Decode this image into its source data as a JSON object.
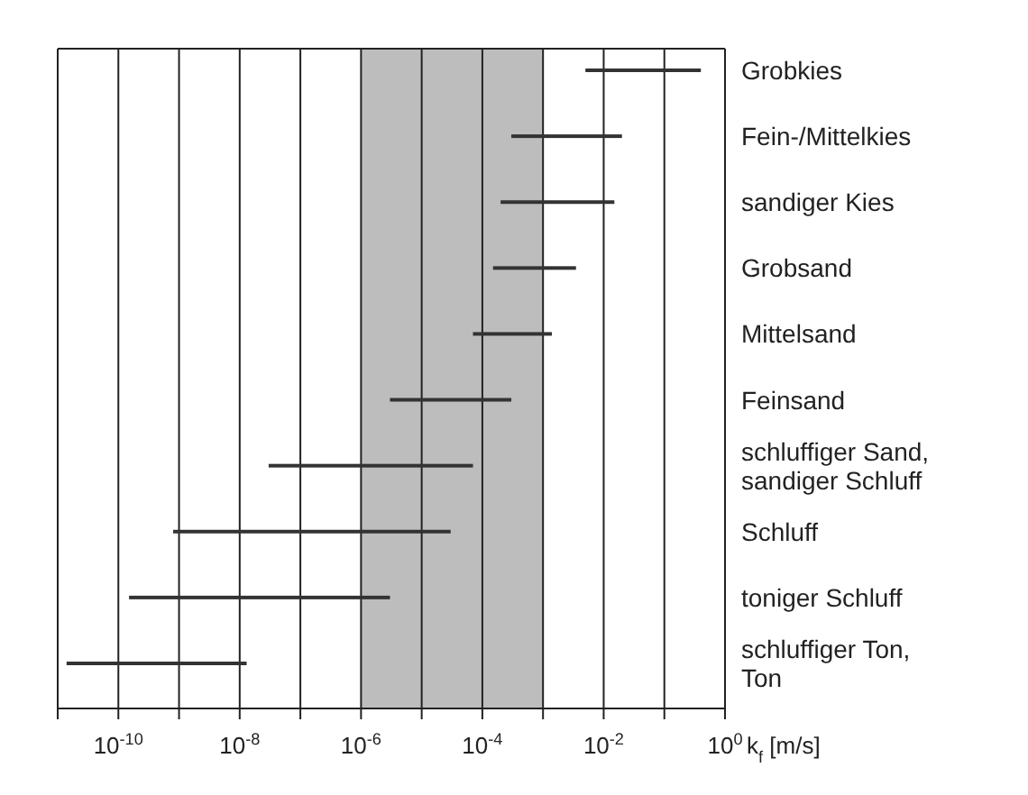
{
  "chart_data": {
    "type": "bar",
    "orientation": "horizontal",
    "xlabel": "k$_{f}$ [m/s]",
    "categories": [
      "Grobkies",
      "Fein-/Mittelkies",
      "sandiger Kies",
      "Grobsand",
      "Mittelsand",
      "Feinsand",
      "schluffiger Sand, sandiger Schluff",
      "Schluff",
      "toniger Schluff",
      "schluffiger Ton, Ton"
    ],
    "base": [
      0.005,
      0.0003,
      0.0002,
      0.00015,
      7e-05,
      3e-06,
      3e-08,
      8e-10,
      1.5e-10,
      1.4e-11
    ],
    "values": [
      0.395,
      0.0197,
      0.0148,
      0.00335,
      0.00133,
      0.000297,
      7e-05,
      3e-05,
      3e-06,
      1.3e-08
    ],
    "color": "#333333",
    "log": "x",
    "xlim": [
      1e-11,
      1
    ],
    "xticks": [
      {
        "value": 1e-11,
        "label": null
      },
      {
        "value": 1e-10,
        "label": "10$^{-10}$"
      },
      {
        "value": 1e-09,
        "label": null
      },
      {
        "value": 1e-08,
        "label": "10$^{-8}$"
      },
      {
        "value": 1e-07,
        "label": null
      },
      {
        "value": 1e-06,
        "label": "10$^{-6}$"
      },
      {
        "value": 1e-05,
        "label": null
      },
      {
        "value": 0.0001,
        "label": "10$^{-4}$"
      },
      {
        "value": 0.001,
        "label": null
      },
      {
        "value": 0.01,
        "label": "10$^{-2}$"
      },
      {
        "value": 0.1,
        "label": null
      },
      {
        "value": 1,
        "label": "10$^{0}$"
      }
    ],
    "grid": "x",
    "bands": [
      {
        "axis": "x",
        "from": 1e-06,
        "to": 0.001,
        "color": "#bdbdbd"
      }
    ]
  }
}
